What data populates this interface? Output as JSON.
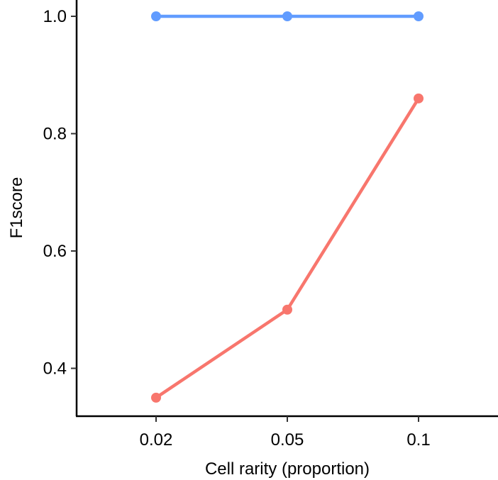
{
  "chart_data": {
    "type": "line",
    "title": "",
    "xlabel": "Cell rarity (proportion)",
    "ylabel": "F1score",
    "categories": [
      "0.02",
      "0.05",
      "0.1"
    ],
    "ylim": [
      0.3,
      1.03
    ],
    "yticks": [
      0.4,
      0.6,
      0.8,
      1.0
    ],
    "ytick_labels": [
      "0.4",
      "0.6",
      "0.8",
      "1.0"
    ],
    "grid": false,
    "legend": "none",
    "series": [
      {
        "values": [
          1.0,
          1.0,
          1.0
        ],
        "color": "#619CFF"
      },
      {
        "values": [
          0.35,
          0.5,
          0.86
        ],
        "color": "#F8766D"
      }
    ]
  }
}
